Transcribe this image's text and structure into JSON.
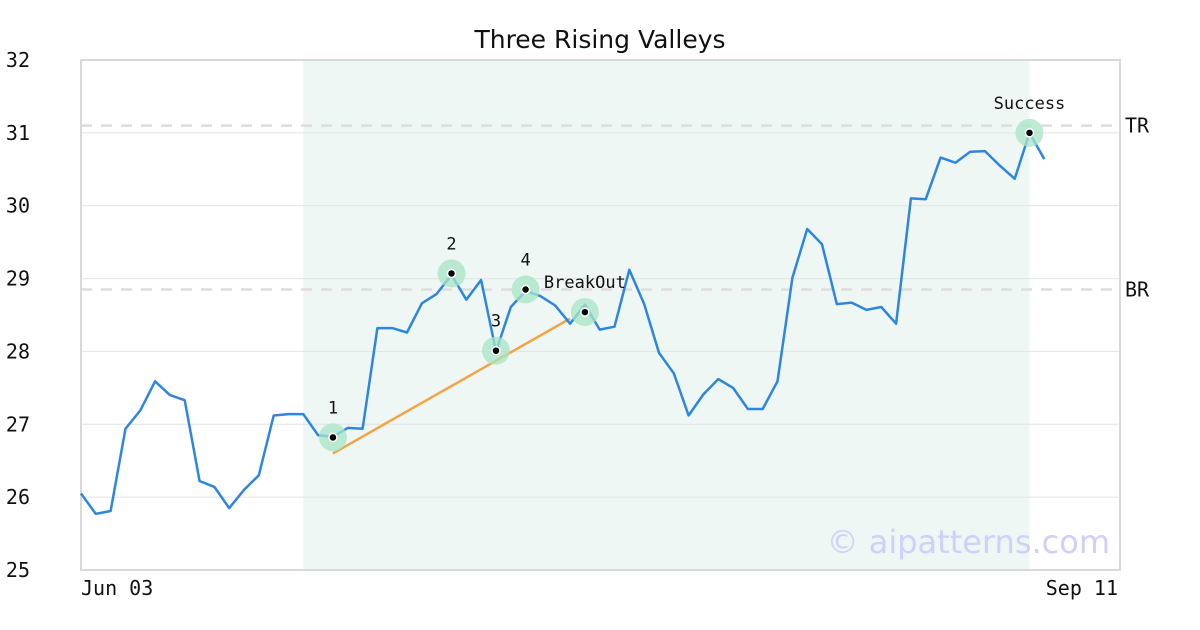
{
  "chart_data": {
    "type": "line",
    "title": "Three Rising Valleys",
    "xlabel": "",
    "ylabel": "",
    "ylim": [
      25,
      32
    ],
    "yticks": [
      25,
      26,
      27,
      28,
      29,
      30,
      31,
      32
    ],
    "x_tick_labels": [
      {
        "label": "Jun 03",
        "index": 0
      },
      {
        "label": "Sep 11",
        "index": 70
      }
    ],
    "grid": "horizontal",
    "series": [
      {
        "color": "#2e86de",
        "values": [
          26.05,
          25.77,
          25.81,
          26.94,
          27.19,
          27.59,
          27.4,
          27.33,
          26.22,
          26.14,
          25.85,
          26.1,
          26.3,
          27.12,
          27.14,
          27.14,
          26.85,
          26.83,
          26.95,
          26.94,
          28.32,
          28.32,
          28.26,
          28.66,
          28.79,
          29.05,
          28.71,
          28.98,
          28.0,
          28.61,
          28.83,
          28.76,
          28.63,
          28.38,
          28.64,
          28.3,
          28.34,
          29.12,
          28.65,
          27.98,
          27.7,
          27.12,
          27.41,
          27.62,
          27.5,
          27.21,
          27.21,
          27.59,
          29.01,
          29.68,
          29.47,
          28.65,
          28.67,
          28.57,
          28.61,
          28.38,
          30.1,
          30.09,
          30.66,
          30.59,
          30.74,
          30.75,
          30.55,
          30.37,
          31.0,
          30.64
        ]
      }
    ],
    "highlight_region": {
      "start_index": 15,
      "end_index": 64,
      "color": "#eef7f3"
    },
    "levels": [
      {
        "name": "TR",
        "value": 31.1
      },
      {
        "name": "BR",
        "value": 28.85
      }
    ],
    "trendline": {
      "color": "#f4a346",
      "points": [
        {
          "index": 17,
          "value": 26.6
        },
        {
          "index": 33,
          "value": 28.45
        }
      ]
    },
    "markers": [
      {
        "label": "1",
        "index": 17,
        "value": 26.82
      },
      {
        "label": "2",
        "index": 25,
        "value": 29.07
      },
      {
        "label": "3",
        "index": 28,
        "value": 28.01
      },
      {
        "label": "4",
        "index": 30,
        "value": 28.85
      },
      {
        "label": "BreakOut",
        "index": 34,
        "value": 28.54
      },
      {
        "label": "Success",
        "index": 64,
        "value": 31.0
      }
    ],
    "watermark": "© aipatterns.com"
  }
}
